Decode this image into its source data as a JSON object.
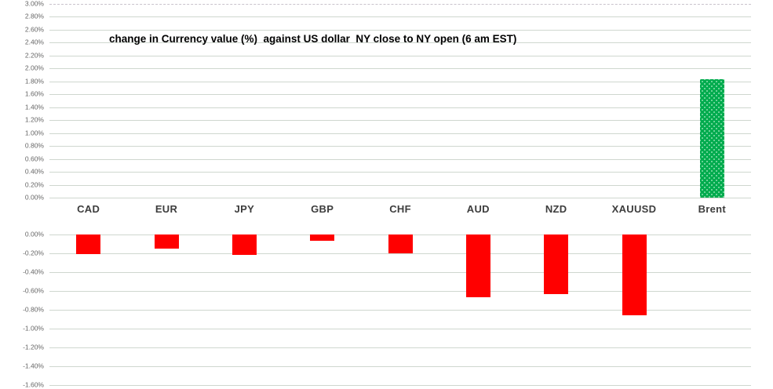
{
  "chart_data": {
    "type": "bar",
    "title": "change in Currency value (%)  against US dollar  NY close to NY open (6 am EST)",
    "categories": [
      "CAD",
      "EUR",
      "JPY",
      "GBP",
      "CHF",
      "AUD",
      "NZD",
      "XAUUSD",
      "Brent"
    ],
    "values": [
      -0.21,
      -0.15,
      -0.22,
      -0.07,
      -0.2,
      -0.67,
      -0.63,
      -0.86,
      1.84
    ],
    "unit": "%",
    "legend": "none",
    "grid": true,
    "positive_color": "#00ab4e",
    "negative_color": "#ff0000",
    "grid_color": "#cfd7cf",
    "split_axis": {
      "top": {
        "max": 3.0,
        "min": 0.0,
        "step": 0.2,
        "tick_labels": [
          "3.00%",
          "2.80%",
          "2.60%",
          "2.40%",
          "2.20%",
          "2.00%",
          "1.80%",
          "1.60%",
          "1.40%",
          "1.20%",
          "1.00%",
          "0.80%",
          "0.60%",
          "0.40%",
          "0.20%",
          "0.00%"
        ]
      },
      "bottom": {
        "max": 0.0,
        "min": -1.6,
        "step": 0.2,
        "tick_labels": [
          "0.00%",
          "-0.20%",
          "-0.40%",
          "-0.60%",
          "-0.80%",
          "-1.00%",
          "-1.20%",
          "-1.40%",
          "-1.60%"
        ]
      }
    }
  }
}
